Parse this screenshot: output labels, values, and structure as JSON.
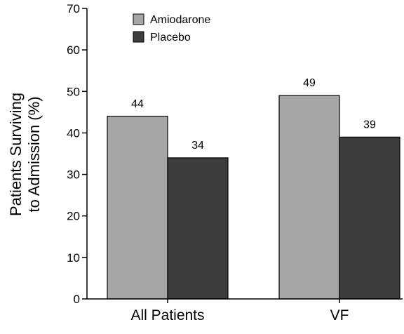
{
  "chart_data": {
    "type": "bar",
    "categories": [
      "All Patients",
      "VF"
    ],
    "series": [
      {
        "name": "Amiodarone",
        "values": [
          44,
          49
        ],
        "color": "#a6a6a6"
      },
      {
        "name": "Placebo",
        "values": [
          34,
          39
        ],
        "color": "#3d3d3d"
      }
    ],
    "data_labels": [
      [
        "44",
        "34"
      ],
      [
        "49",
        "39"
      ]
    ],
    "ylabel_line1": "Patients Surviving",
    "ylabel_line2": "to Admission (%)",
    "ylim": [
      0,
      70
    ],
    "yticks": [
      0,
      10,
      20,
      30,
      40,
      50,
      60,
      70
    ],
    "grid": false,
    "legend_position": "top-left"
  }
}
